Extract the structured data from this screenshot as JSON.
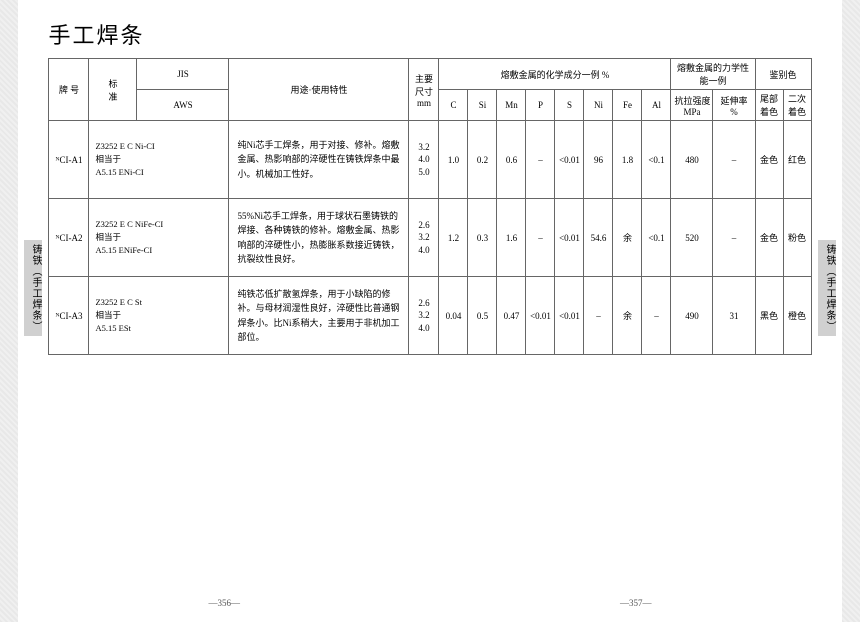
{
  "title": "手工焊条",
  "sideTab": "铸铁（手工焊条）",
  "headers": {
    "grade": "牌 号",
    "std": "标\n准",
    "jis": "JIS",
    "aws": "AWS",
    "use": "用途·使用特性",
    "size": "主要\n尺寸\nmm",
    "chemGroup": "熔敷金属的化学成分一例 %",
    "mechGroup": "熔敷金属的力学性能一例",
    "colorGroup": "鉴别色",
    "C": "C",
    "Si": "Si",
    "Mn": "Mn",
    "P": "P",
    "S": "S",
    "Ni": "Ni",
    "Fe": "Fe",
    "Al": "Al",
    "tensile": "抗拉强度\nMPa",
    "elong": "延伸率\n%",
    "col1": "尾部\n着色",
    "col2": "二次\n着色"
  },
  "rows": [
    {
      "grade": "ᴺCI-A1",
      "std": "Z3252 E C Ni-CI\n相当于\nA5.15 ENi-CI",
      "use": "纯Ni芯手工焊条，用于对接、修补。熔敷金属、热影响部的淬硬性在铸铁焊条中最小。机械加工性好。",
      "size": "3.2\n4.0\n5.0",
      "C": "1.0",
      "Si": "0.2",
      "Mn": "0.6",
      "P": "–",
      "S": "<0.01",
      "Ni": "96",
      "Fe": "1.8",
      "Al": "<0.1",
      "tensile": "480",
      "elong": "–",
      "col1": "金色",
      "col2": "红色"
    },
    {
      "grade": "ᴺCI-A2",
      "std": "Z3252 E C NiFe-CI\n相当于\nA5.15 ENiFe-CI",
      "use": "55%Ni芯手工焊条，用于球状石墨铸铁的焊接、各种铸铁的修补。熔敷金属、热影响部的淬硬性小，热膨胀系数接近铸铁，抗裂纹性良好。",
      "size": "2.6\n3.2\n4.0",
      "C": "1.2",
      "Si": "0.3",
      "Mn": "1.6",
      "P": "–",
      "S": "<0.01",
      "Ni": "54.6",
      "Fe": "余",
      "Al": "<0.1",
      "tensile": "520",
      "elong": "–",
      "col1": "金色",
      "col2": "粉色"
    },
    {
      "grade": "ᴺCI-A3",
      "std": "Z3252 E C St\n相当于\nA5.15 ESt",
      "use": "纯铁芯低扩散氢焊条，用于小缺陷的修补。与母材润湿性良好，淬硬性比普通钢焊条小。比Ni系稍大，主要用于非机加工部位。",
      "size": "2.6\n3.2\n4.0",
      "C": "0.04",
      "Si": "0.5",
      "Mn": "0.47",
      "P": "<0.01",
      "S": "<0.01",
      "Ni": "–",
      "Fe": "余",
      "Al": "–",
      "tensile": "490",
      "elong": "31",
      "col1": "黑色",
      "col2": "橙色"
    }
  ],
  "pageLeft": "—356—",
  "pageRight": "—357—"
}
